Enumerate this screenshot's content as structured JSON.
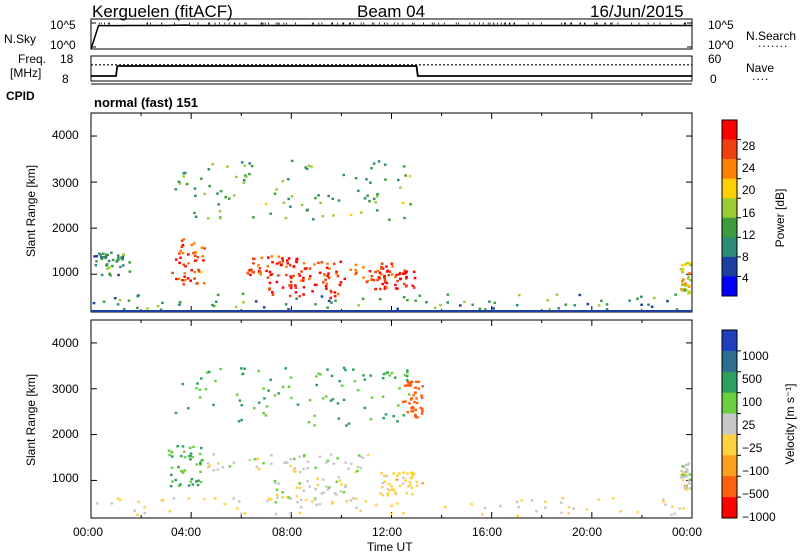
{
  "header": {
    "station": "Kerguelen (fitACF)",
    "beam": "Beam 04",
    "date": "16/Jun/2015"
  },
  "top_panels": {
    "nsky_label": "N.Sky",
    "nsky_ticks": [
      "10^5",
      "10^0"
    ],
    "nsearch_label": "N.Search",
    "nsearch_ticks": [
      "10^5",
      "10^0"
    ],
    "freq_label": "Freq.",
    "freq_unit": "[MHz]",
    "freq_ticks": [
      "18",
      "8"
    ],
    "nave_label": "Nave",
    "nave_ticks": [
      "60",
      "0"
    ],
    "cpid_label": "CPID",
    "cpid_value": "normal (fast) 151"
  },
  "axes": {
    "ylabel": "Slant Range [km]",
    "yticks": [
      "4000",
      "3000",
      "2000",
      "1000"
    ],
    "yticks2": [
      "4000",
      "3000",
      "2000",
      "1000"
    ],
    "xticks": [
      "00:00",
      "04:00",
      "08:00",
      "12:00",
      "16:00",
      "20:00",
      "00:00"
    ],
    "xlabel": "Time UT"
  },
  "power_bar": {
    "label": "Power [dB]",
    "ticks": [
      "28",
      "24",
      "20",
      "16",
      "12",
      "8",
      "4"
    ],
    "colors": [
      "#ff0000",
      "#f04010",
      "#ff7f00",
      "#ffd000",
      "#9acd32",
      "#3c9b3c",
      "#2e8b77",
      "#1d3fa0",
      "#0000ff"
    ]
  },
  "velocity_bar": {
    "label": "Velocity [m s⁻¹]",
    "ticks": [
      "1000",
      "500",
      "100",
      "25",
      "−25",
      "−100",
      "−500",
      "−1000"
    ],
    "colors": [
      "#1f3fbf",
      "#2a6f8f",
      "#2f9f5f",
      "#6ccf40",
      "#c8c8c8",
      "#ffd23f",
      "#ff9f1f",
      "#ff5f0f",
      "#ff0000"
    ]
  },
  "chart_data": [
    {
      "type": "line",
      "panel": "N.Sky / N.Search",
      "x_hours": [
        0,
        0.3,
        1,
        2,
        3,
        3.8,
        4,
        6,
        8,
        10,
        12,
        14,
        16,
        18,
        20,
        22,
        24
      ],
      "series": [
        {
          "name": "N.Sky",
          "values": [
            1,
            8000,
            8000,
            8200,
            8300,
            9500,
            8400,
            8300,
            8200,
            8300,
            8400,
            8300,
            8200,
            8200,
            8300,
            8200,
            8200
          ]
        }
      ],
      "yscale": "log",
      "ylim": [
        1,
        100000
      ]
    },
    {
      "type": "line",
      "panel": "Freq. / Nave",
      "x_hours": [
        0,
        1,
        1.05,
        13,
        13.05,
        24
      ],
      "series": [
        {
          "name": "Freq.",
          "values": [
            10,
            10,
            14,
            14,
            10,
            10
          ]
        },
        {
          "name": "Nave",
          "values": [
            39,
            39,
            39,
            39,
            39,
            39
          ]
        }
      ],
      "ylim_freq": [
        8,
        18
      ],
      "ylim_nave": [
        0,
        60
      ]
    },
    {
      "type": "heatmap",
      "panel": "Power",
      "xlim": [
        0,
        24
      ],
      "ylim": [
        180,
        4500
      ],
      "zlim": [
        0,
        30
      ],
      "blobs": [
        {
          "t0": 3.2,
          "t1": 4.5,
          "r0": 800,
          "r1": 1800,
          "value": 24
        },
        {
          "t0": 6.2,
          "t1": 8.2,
          "r0": 1000,
          "r1": 1450,
          "value": 26
        },
        {
          "t0": 7.0,
          "t1": 10.0,
          "r0": 500,
          "r1": 1100,
          "value": 28
        },
        {
          "t0": 8.0,
          "t1": 12.0,
          "r0": 850,
          "r1": 1300,
          "value": 24
        },
        {
          "t0": 11.3,
          "t1": 13.0,
          "r0": 700,
          "r1": 1150,
          "value": 28
        },
        {
          "t0": 0.0,
          "t1": 24.0,
          "r0": 180,
          "r1": 600,
          "value": 10
        },
        {
          "t0": 3.3,
          "t1": 13.0,
          "r0": 2200,
          "r1": 3500,
          "value": 12
        },
        {
          "t0": 0.0,
          "t1": 1.5,
          "r0": 1000,
          "r1": 1500,
          "value": 10
        },
        {
          "t0": 23.5,
          "t1": 24.0,
          "r0": 600,
          "r1": 1300,
          "value": 18
        }
      ]
    },
    {
      "type": "heatmap",
      "panel": "Velocity",
      "xlim": [
        0,
        24
      ],
      "ylim": [
        180,
        4500
      ],
      "zlim": [
        -1000,
        1000
      ],
      "blobs": [
        {
          "t0": 3.0,
          "t1": 4.4,
          "r0": 900,
          "r1": 1800,
          "value": 110
        },
        {
          "t0": 4.5,
          "t1": 11.5,
          "r0": 1200,
          "r1": 1600,
          "value": 0
        },
        {
          "t0": 7.0,
          "t1": 10.5,
          "r0": 500,
          "r1": 1100,
          "value": 0
        },
        {
          "t0": 11.5,
          "t1": 13.2,
          "r0": 700,
          "r1": 1200,
          "value": -60
        },
        {
          "t0": 0.0,
          "t1": 24.0,
          "r0": 180,
          "r1": 650,
          "value": -30
        },
        {
          "t0": 3.3,
          "t1": 13.0,
          "r0": 2200,
          "r1": 3500,
          "value": 110
        },
        {
          "t0": 12.4,
          "t1": 13.2,
          "r0": 2400,
          "r1": 3200,
          "value": -600
        },
        {
          "t0": 23.5,
          "t1": 24.0,
          "r0": 800,
          "r1": 1400,
          "value": 0
        }
      ]
    }
  ]
}
